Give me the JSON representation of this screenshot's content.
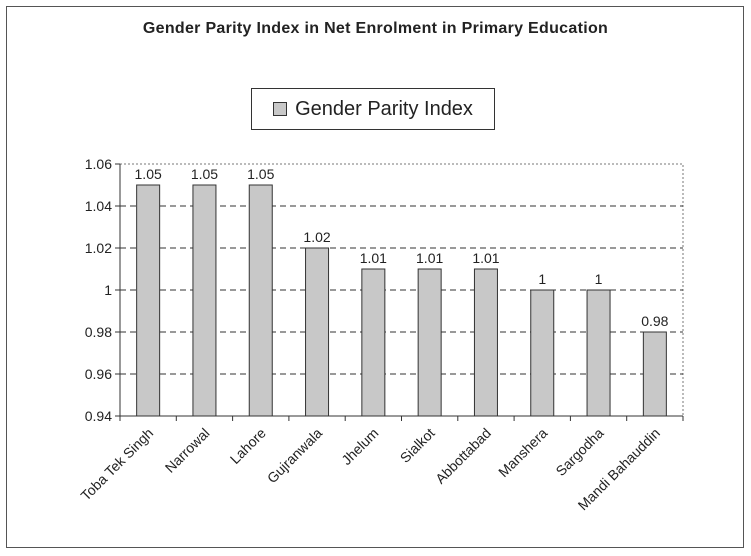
{
  "chart_data": {
    "type": "bar",
    "title": "Gender Parity Index in Net Enrolment in Primary Education",
    "xlabel": "",
    "ylabel": "",
    "categories": [
      "Toba Tek Singh",
      "Narrowal",
      "Lahore",
      "Gujranwala",
      "Jhelum",
      "Sialkot",
      "Abbottabad",
      "Manshera",
      "Sargodha",
      "Mandi Bahauddin"
    ],
    "series": [
      {
        "name": "Gender Parity Index",
        "values": [
          1.05,
          1.05,
          1.05,
          1.02,
          1.01,
          1.01,
          1.01,
          1,
          1,
          0.98
        ],
        "data_labels": [
          "1.05",
          "1.05",
          "1.05",
          "1.02",
          "1.01",
          "1.01",
          "1.01",
          "1",
          "1",
          "0.98"
        ],
        "color": "#c8c8c8"
      }
    ],
    "ylim": [
      0.94,
      1.06
    ],
    "yticks": [
      0.94,
      0.96,
      0.98,
      1,
      1.02,
      1.04,
      1.06
    ],
    "ytick_labels": [
      "0.94",
      "0.96",
      "0.98",
      "1",
      "1.02",
      "1.04",
      "1.06"
    ],
    "grid": true,
    "legend_position": "top-center"
  }
}
